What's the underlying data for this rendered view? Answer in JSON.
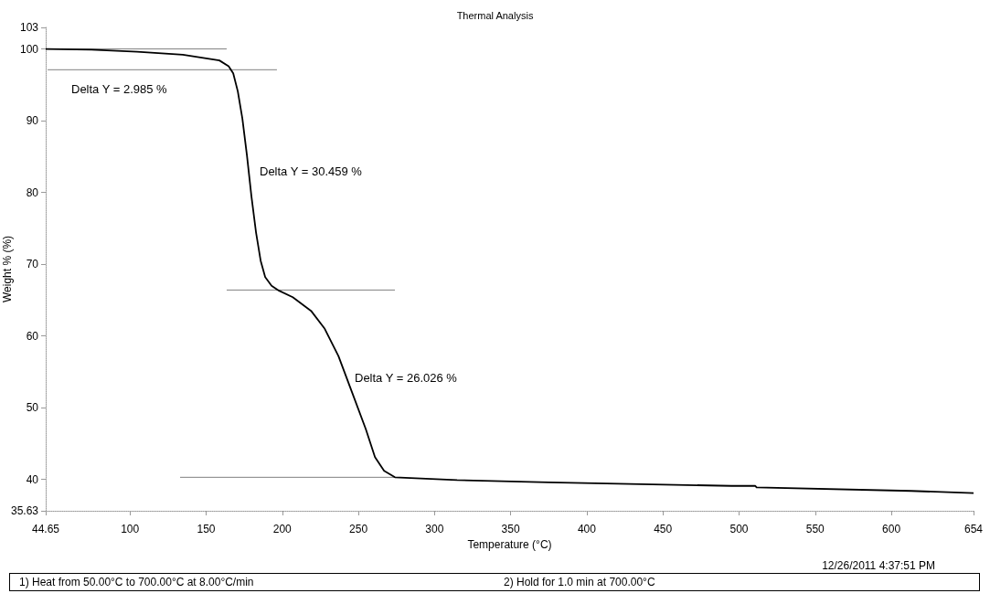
{
  "chart_data": {
    "type": "line",
    "title": "Thermal Analysis",
    "xlabel": "Temperature (°C)",
    "ylabel": "Weight % (%)",
    "xlim": [
      44.65,
      654
    ],
    "xticks": [
      44.65,
      100,
      150,
      200,
      250,
      300,
      350,
      400,
      450,
      500,
      550,
      600,
      654
    ],
    "ylim": [
      35.63,
      103
    ],
    "yticks": [
      35.63,
      40,
      50,
      60,
      70,
      80,
      90,
      100,
      103
    ],
    "grid": false,
    "marker": "none",
    "line_style": "solid",
    "series": [
      {
        "color": "#000000",
        "x": [
          44.65,
          74.7,
          104.7,
          134.7,
          158.7,
          164.8,
          167.8,
          170.8,
          173.8,
          176.8,
          179.8,
          182.8,
          185.8,
          188.8,
          193,
          197.9,
          206.9,
          218.9,
          227.9,
          236.9,
          245.9,
          254.9,
          260.9,
          266.9,
          274,
          314.8,
          374.9,
          495,
          510.7,
          511.5,
          613,
          654
        ],
        "values": [
          100,
          99.9,
          99.6,
          99.2,
          98.4,
          97.6,
          96.6,
          94.1,
          90.3,
          85.2,
          79.4,
          74.4,
          70.5,
          68.2,
          67.0,
          66.3,
          65.4,
          63.5,
          61.0,
          57.2,
          52.1,
          47.0,
          43.1,
          41.2,
          40.3,
          39.9,
          39.6,
          39.1,
          39.1,
          38.9,
          38.4,
          38.1
        ]
      },
      {
        "color": "#808080",
        "x": [
          44.65,
          163.5
        ],
        "values": [
          100,
          100
        ]
      },
      {
        "color": "#808080",
        "x": [
          45.9,
          196.5
        ],
        "values": [
          97.1,
          97.1
        ]
      },
      {
        "color": "#808080",
        "x": [
          163.5,
          274
        ],
        "values": [
          66.4,
          66.4
        ]
      },
      {
        "color": "#808080",
        "x": [
          132.9,
          274
        ],
        "values": [
          40.3,
          40.3
        ]
      }
    ],
    "annotations": [
      "Delta Y = 2.985 %",
      "Delta Y = 30.459 %",
      "Delta Y = 26.026 %",
      "12/26/2011 4:37:51 PM",
      "1)  Heat from 50.00°C to 700.00°C at 8.00°C/min",
      "2)  Hold for 1.0 min at 700.00°C"
    ]
  }
}
